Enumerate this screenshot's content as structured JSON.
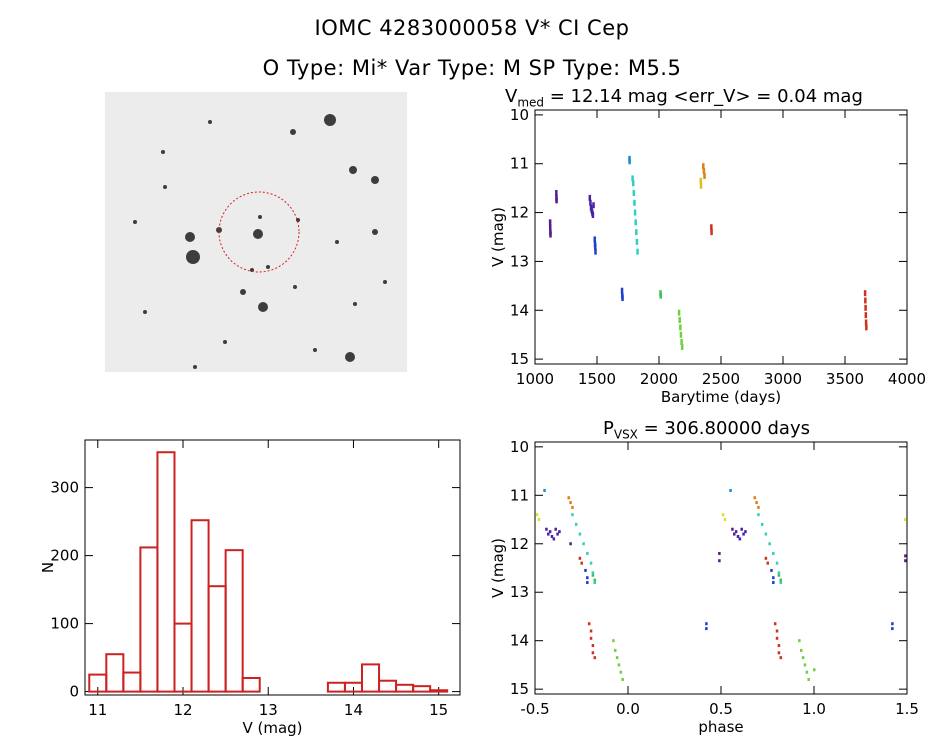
{
  "header": {
    "line1": "IOMC 4283000058    V* CI Cep",
    "line2": "O Type: Mi*   Var Type: M   SP Type: M5.5"
  },
  "image_panel": {
    "icon": "sky-cutout-image",
    "top_left_label": "",
    "target_circle_color": "#d62020"
  },
  "chart_data": [
    {
      "type": "scatter",
      "title_main": "V",
      "title_sub": "med",
      "title_rest": " = 12.14 mag <err_V> = 0.04 mag",
      "xlabel": "Barytime (days)",
      "ylabel": "V (mag)",
      "xlim": [
        1000,
        4000
      ],
      "ylim": [
        15.1,
        9.9
      ],
      "y_inverted": true,
      "xticks": [
        1000,
        1500,
        2000,
        2500,
        3000,
        3500,
        4000
      ],
      "yticks": [
        10,
        11,
        12,
        13,
        14,
        15
      ],
      "series": [
        {
          "color": "#5a1a8c",
          "points": [
            [
              1120,
              12.2
            ],
            [
              1121,
              12.3
            ],
            [
              1122,
              12.4
            ],
            [
              1123,
              12.45
            ],
            [
              1170,
              11.6
            ],
            [
              1171,
              11.7
            ],
            [
              1172,
              11.75
            ]
          ]
        },
        {
          "color": "#4b1fa8",
          "points": [
            [
              1440,
              11.7
            ],
            [
              1445,
              11.8
            ],
            [
              1450,
              11.9
            ],
            [
              1455,
              11.95
            ],
            [
              1460,
              12.0
            ],
            [
              1465,
              12.05
            ],
            [
              1470,
              11.85
            ]
          ]
        },
        {
          "color": "#1e3fd0",
          "points": [
            [
              1480,
              12.55
            ],
            [
              1482,
              12.65
            ],
            [
              1484,
              12.7
            ],
            [
              1486,
              12.8
            ]
          ]
        },
        {
          "color": "#1e3fd0",
          "points": [
            [
              1700,
              13.6
            ],
            [
              1702,
              13.7
            ],
            [
              1704,
              13.75
            ]
          ]
        },
        {
          "color": "#1a8fd0",
          "points": [
            [
              1760,
              10.9
            ],
            [
              1761,
              10.95
            ]
          ]
        },
        {
          "color": "#30d0c0",
          "points": [
            [
              1790,
              11.4
            ],
            [
              1795,
              11.6
            ],
            [
              1800,
              11.8
            ],
            [
              1805,
              12.0
            ],
            [
              1810,
              12.2
            ],
            [
              1815,
              12.4
            ],
            [
              1820,
              12.6
            ],
            [
              1825,
              12.8
            ],
            [
              1785,
              11.3
            ]
          ]
        },
        {
          "color": "#40c060",
          "points": [
            [
              2010,
              13.65
            ],
            [
              2012,
              13.7
            ]
          ]
        },
        {
          "color": "#70d040",
          "points": [
            [
              2160,
              14.05
            ],
            [
              2165,
              14.2
            ],
            [
              2170,
              14.35
            ],
            [
              2175,
              14.5
            ],
            [
              2180,
              14.65
            ],
            [
              2185,
              14.75
            ]
          ]
        },
        {
          "color": "#e0c020",
          "points": [
            [
              2335,
              11.35
            ],
            [
              2337,
              11.45
            ]
          ]
        },
        {
          "color": "#e08010",
          "points": [
            [
              2355,
              11.05
            ],
            [
              2360,
              11.15
            ],
            [
              2365,
              11.25
            ]
          ]
        },
        {
          "color": "#d03020",
          "points": [
            [
              2420,
              12.3
            ],
            [
              2422,
              12.4
            ]
          ]
        },
        {
          "color": "#d03020",
          "points": [
            [
              3660,
              13.65
            ],
            [
              3662,
              13.8
            ],
            [
              3664,
              13.95
            ],
            [
              3666,
              14.1
            ],
            [
              3668,
              14.25
            ],
            [
              3670,
              14.35
            ]
          ]
        }
      ]
    },
    {
      "type": "bar",
      "title": "",
      "xlabel": "V (mag)",
      "ylabel": "N",
      "xlim": [
        10.85,
        15.25
      ],
      "ylim": [
        -5,
        370
      ],
      "xticks": [
        11,
        12,
        13,
        14,
        15
      ],
      "yticks": [
        0,
        100,
        200,
        300
      ],
      "bin_width": 0.2,
      "bin_starts": [
        10.9,
        11.1,
        11.3,
        11.5,
        11.7,
        11.9,
        12.1,
        12.3,
        12.5,
        12.7,
        12.9,
        13.1,
        13.3,
        13.5,
        13.7,
        13.9,
        14.1,
        14.3,
        14.5,
        14.7,
        14.9
      ],
      "values": [
        25,
        55,
        28,
        212,
        352,
        100,
        252,
        155,
        208,
        20,
        0,
        0,
        0,
        0,
        13,
        13,
        40,
        16,
        10,
        8,
        2
      ],
      "bar_color": "#cc2222"
    },
    {
      "type": "scatter",
      "title_main": "P",
      "title_sub": "VSX",
      "title_rest": " = 306.80000 days",
      "xlabel": "phase",
      "ylabel": "V (mag)",
      "xlim": [
        -0.5,
        1.5
      ],
      "ylim": [
        15.1,
        9.9
      ],
      "y_inverted": true,
      "xticks": [
        -0.5,
        0.0,
        0.5,
        1.0,
        1.5
      ],
      "xtick_labels": [
        "-0.5",
        "0.0",
        "0.5",
        "1.0",
        "1.5"
      ],
      "yticks": [
        10,
        11,
        12,
        13,
        14,
        15
      ],
      "series": [
        {
          "color": "#e0e020",
          "points": [
            [
              -0.49,
              11.4
            ],
            [
              -0.48,
              11.5
            ],
            [
              0.51,
              11.4
            ],
            [
              0.52,
              11.5
            ],
            [
              1.49,
              11.5
            ]
          ]
        },
        {
          "color": "#1a8fd0",
          "points": [
            [
              -0.45,
              10.9
            ],
            [
              0.55,
              10.9
            ]
          ]
        },
        {
          "color": "#e08010",
          "points": [
            [
              -0.32,
              11.05
            ],
            [
              -0.31,
              11.15
            ],
            [
              -0.3,
              11.25
            ],
            [
              0.68,
              11.05
            ],
            [
              0.69,
              11.15
            ],
            [
              0.7,
              11.25
            ]
          ]
        },
        {
          "color": "#4b1fa8",
          "points": [
            [
              -0.44,
              11.7
            ],
            [
              -0.43,
              11.8
            ],
            [
              -0.42,
              11.75
            ],
            [
              -0.41,
              11.85
            ],
            [
              -0.4,
              11.9
            ],
            [
              -0.39,
              11.7
            ],
            [
              -0.38,
              11.8
            ],
            [
              -0.37,
              11.75
            ],
            [
              0.56,
              11.7
            ],
            [
              0.57,
              11.8
            ],
            [
              0.58,
              11.75
            ],
            [
              0.59,
              11.85
            ],
            [
              0.6,
              11.9
            ],
            [
              0.61,
              11.7
            ],
            [
              0.62,
              11.8
            ],
            [
              0.63,
              11.75
            ]
          ]
        },
        {
          "color": "#5a1a8c",
          "points": [
            [
              -0.31,
              12.0
            ],
            [
              0.49,
              12.2
            ],
            [
              0.49,
              12.35
            ],
            [
              1.49,
              12.25
            ],
            [
              1.49,
              12.35
            ]
          ]
        },
        {
          "color": "#30d0c0",
          "points": [
            [
              -0.3,
              11.4
            ],
            [
              -0.28,
              11.6
            ],
            [
              -0.26,
              11.8
            ],
            [
              -0.24,
              12.0
            ],
            [
              -0.22,
              12.2
            ],
            [
              -0.2,
              12.4
            ],
            [
              -0.19,
              12.6
            ],
            [
              -0.18,
              12.8
            ],
            [
              0.7,
              11.4
            ],
            [
              0.72,
              11.6
            ],
            [
              0.74,
              11.8
            ],
            [
              0.76,
              12.0
            ],
            [
              0.78,
              12.2
            ],
            [
              0.8,
              12.4
            ],
            [
              0.81,
              12.6
            ],
            [
              0.82,
              12.8
            ]
          ]
        },
        {
          "color": "#40c060",
          "points": [
            [
              -0.19,
              12.65
            ],
            [
              -0.18,
              12.75
            ],
            [
              0.81,
              12.65
            ],
            [
              0.82,
              12.75
            ]
          ]
        },
        {
          "color": "#d03020",
          "points": [
            [
              -0.26,
              12.3
            ],
            [
              -0.25,
              12.4
            ],
            [
              0.74,
              12.3
            ],
            [
              0.75,
              12.4
            ],
            [
              -0.21,
              13.65
            ],
            [
              -0.2,
              13.8
            ],
            [
              -0.2,
              13.95
            ],
            [
              -0.19,
              14.1
            ],
            [
              -0.19,
              14.25
            ],
            [
              -0.18,
              14.35
            ],
            [
              0.79,
              13.65
            ],
            [
              0.8,
              13.8
            ],
            [
              0.8,
              13.95
            ],
            [
              0.81,
              14.1
            ],
            [
              0.81,
              14.25
            ],
            [
              0.82,
              14.35
            ]
          ]
        },
        {
          "color": "#1e3fd0",
          "points": [
            [
              -0.23,
              12.55
            ],
            [
              -0.22,
              12.7
            ],
            [
              -0.22,
              12.8
            ],
            [
              0.77,
              12.55
            ],
            [
              0.78,
              12.7
            ],
            [
              0.78,
              12.8
            ],
            [
              0.42,
              13.65
            ],
            [
              0.42,
              13.75
            ],
            [
              1.42,
              13.65
            ],
            [
              1.42,
              13.75
            ]
          ]
        },
        {
          "color": "#70d040",
          "points": [
            [
              -0.08,
              14.0
            ],
            [
              -0.07,
              14.2
            ],
            [
              -0.06,
              14.35
            ],
            [
              -0.05,
              14.5
            ],
            [
              -0.04,
              14.65
            ],
            [
              -0.03,
              14.8
            ],
            [
              0.92,
              14.0
            ],
            [
              0.93,
              14.2
            ],
            [
              0.94,
              14.35
            ],
            [
              0.95,
              14.5
            ],
            [
              0.96,
              14.65
            ],
            [
              0.97,
              14.8
            ],
            [
              1.0,
              14.6
            ]
          ]
        }
      ]
    }
  ]
}
